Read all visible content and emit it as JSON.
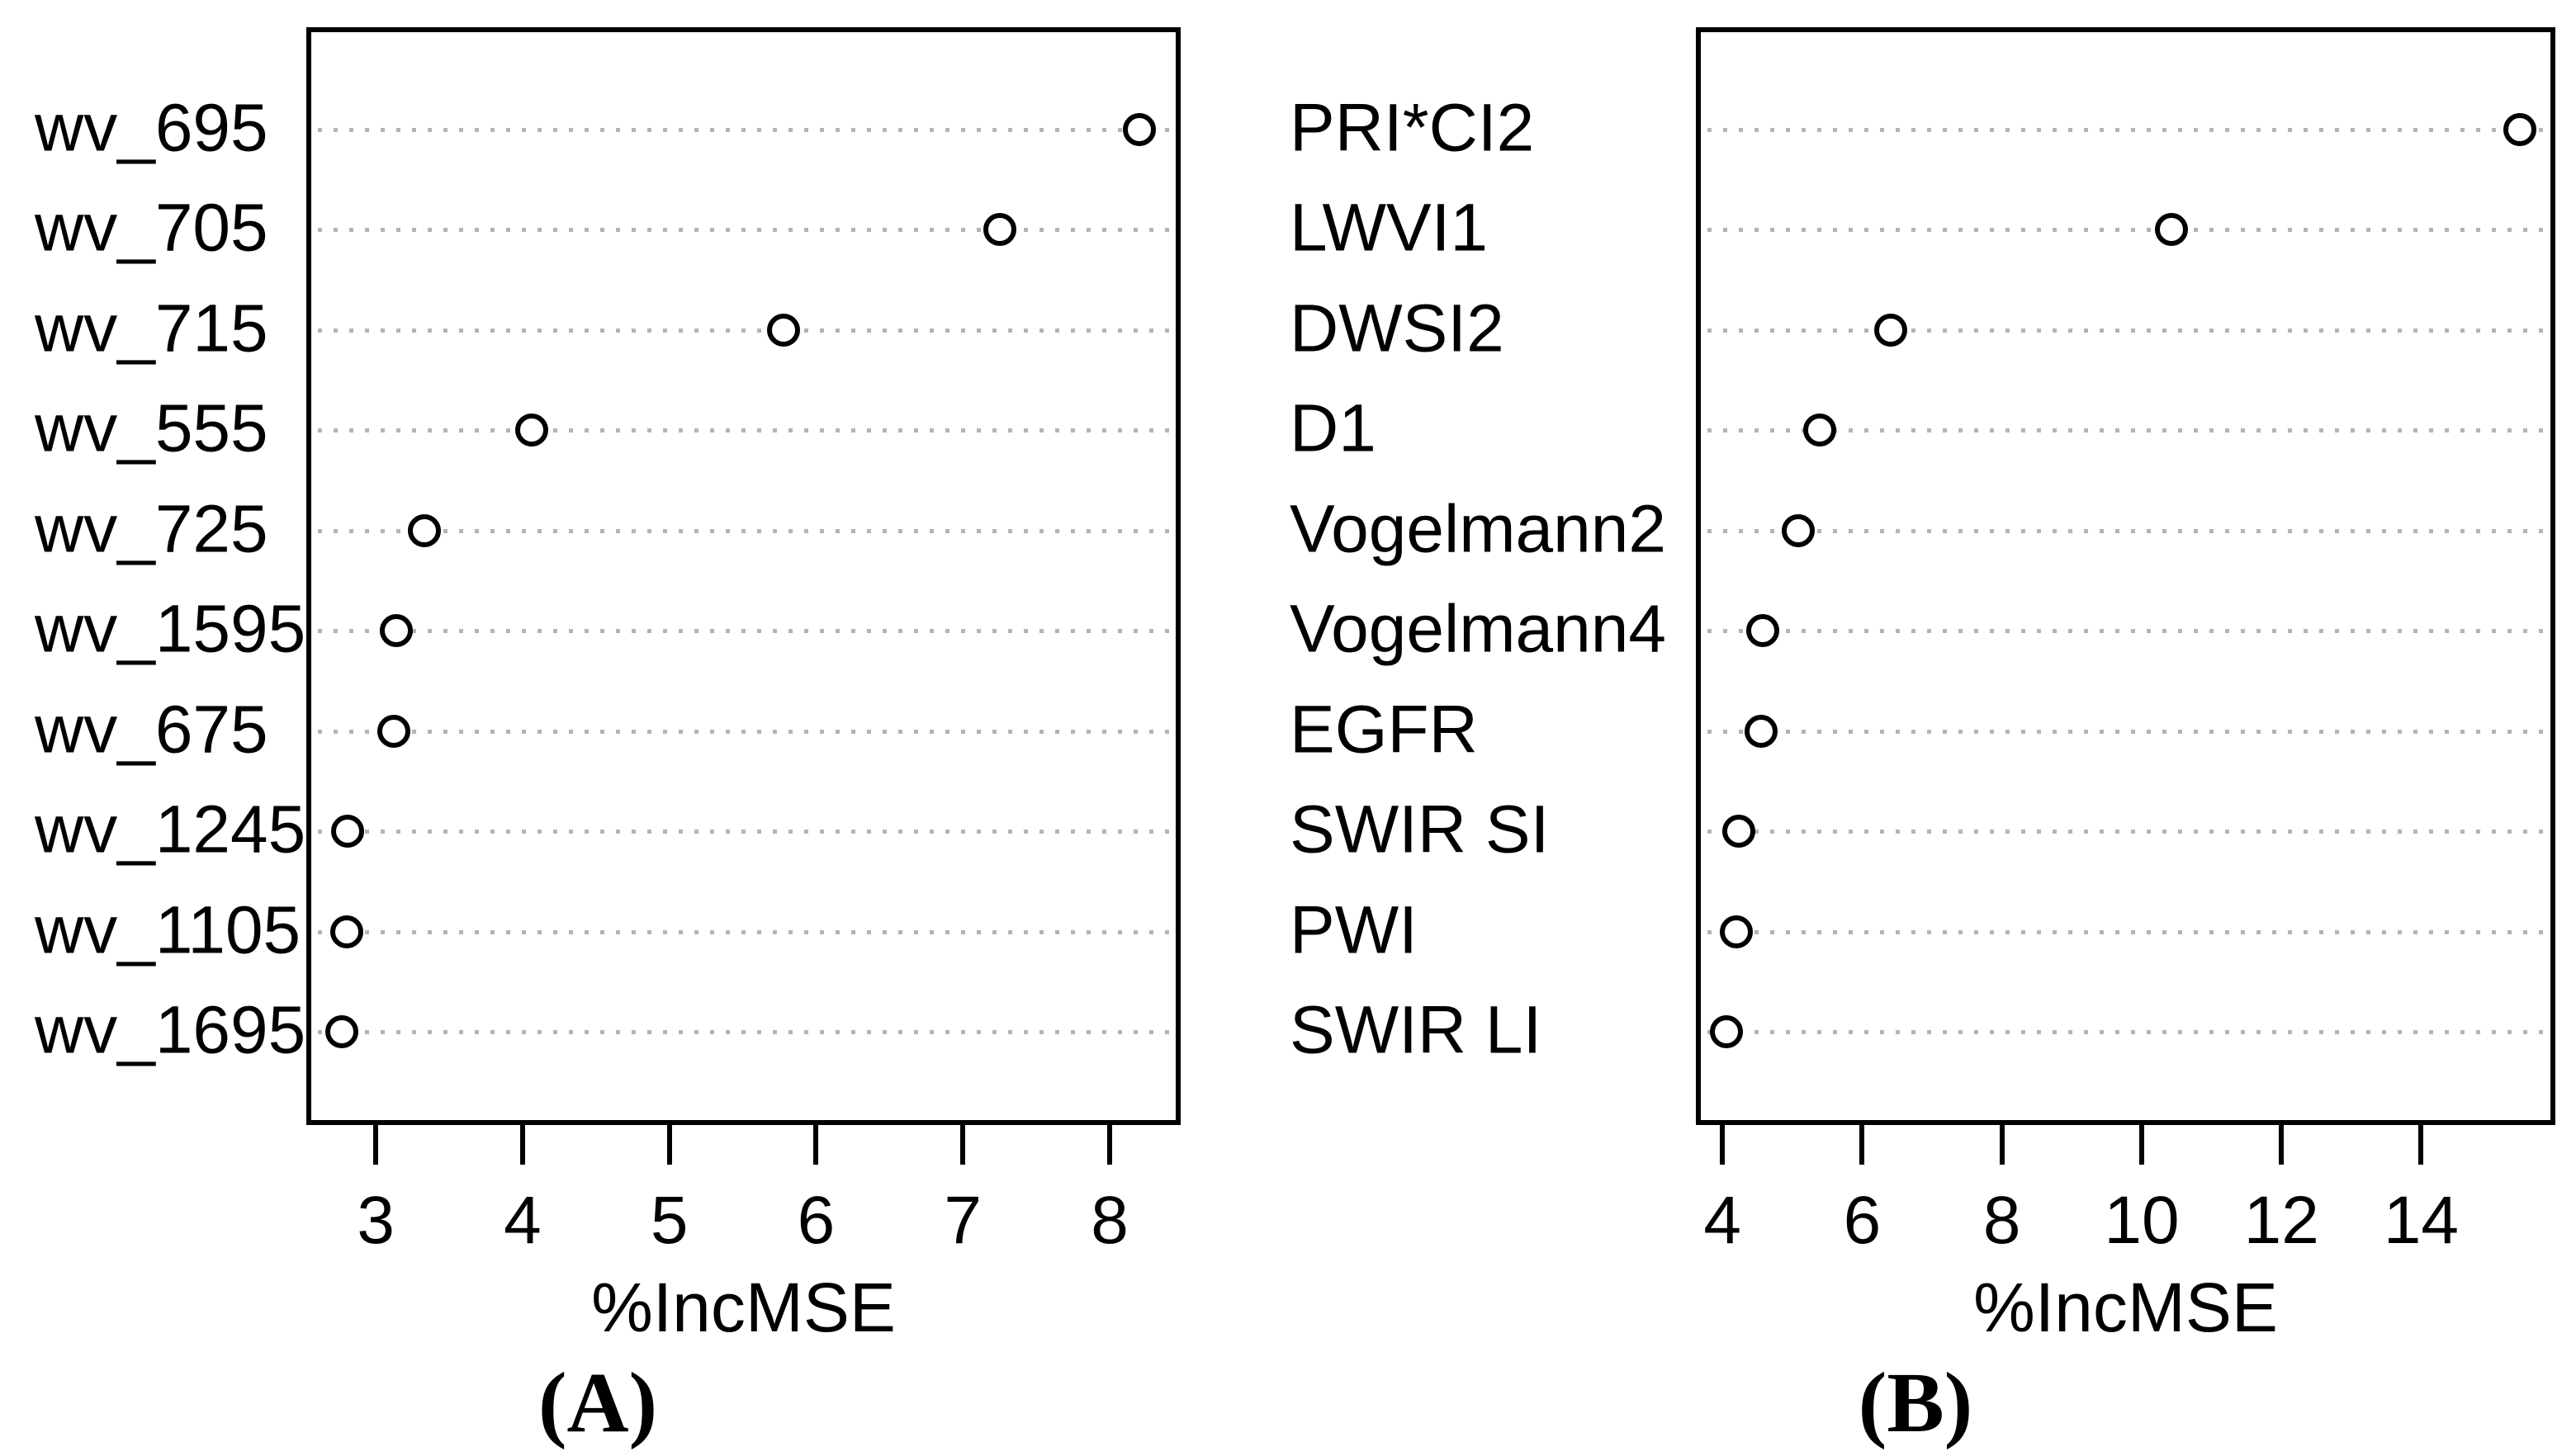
{
  "figure": {
    "background": "#ffffff",
    "description": "Two side-by-side random-forest variable importance dot charts"
  },
  "styles": {
    "point_stroke": "#000000",
    "point_fill": "#ffffff",
    "grid_color": "#b4b4b4",
    "frame_color": "#000000",
    "text_color": "#000000"
  },
  "chart_data": [
    {
      "type": "scatter",
      "variant": "dotchart",
      "panel_label": "(A)",
      "xlabel": "%IncMSE",
      "legend": "none",
      "grid": "dotted horizontal line per category",
      "categories": [
        "wv_695",
        "wv_705",
        "wv_715",
        "wv_555",
        "wv_725",
        "wv_1595",
        "wv_675",
        "wv_1245",
        "wv_1105",
        "wv_1695"
      ],
      "values": [
        8.2,
        7.25,
        5.78,
        4.06,
        3.33,
        3.14,
        3.12,
        2.81,
        2.8,
        2.77
      ],
      "xticks": [
        3,
        4,
        5,
        6,
        7,
        8
      ],
      "xlim": [
        2.56,
        8.45
      ]
    },
    {
      "type": "scatter",
      "variant": "dotchart",
      "panel_label": "(B)",
      "xlabel": "%IncMSE",
      "legend": "none",
      "grid": "dotted horizontal line per category",
      "categories": [
        "PRI*CI2",
        "LWVI1",
        "DWSI2",
        "D1",
        "Vogelmann2",
        "Vogelmann4",
        "EGFR",
        "SWIR SI",
        "PWI",
        "SWIR LI"
      ],
      "values": [
        15.41,
        10.43,
        6.41,
        5.39,
        5.08,
        4.58,
        4.55,
        4.23,
        4.2,
        4.06
      ],
      "xticks": [
        4,
        6,
        8,
        10,
        12,
        14
      ],
      "xlim": [
        3.69,
        15.85
      ]
    }
  ]
}
